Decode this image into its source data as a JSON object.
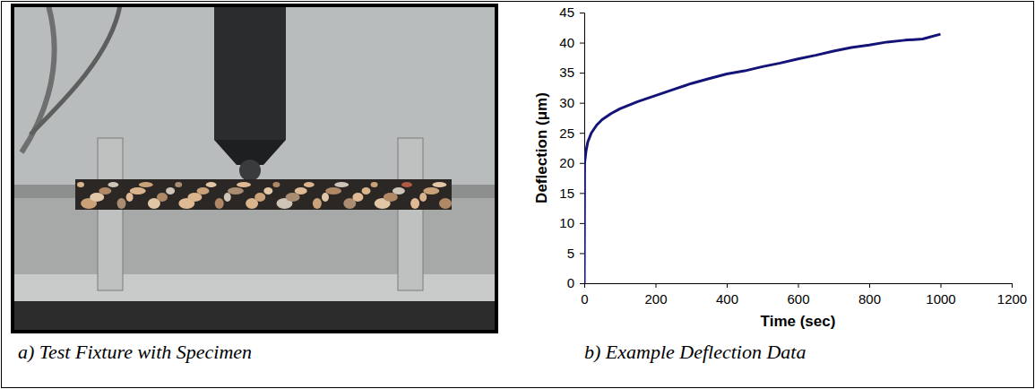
{
  "captions": [
    "a) Test Fixture with Specimen",
    "b) Example Deflection Data"
  ],
  "chart_data": {
    "type": "line",
    "x_label": "Time (sec)",
    "y_label": "Deflection (μm)",
    "x": [
      0,
      1,
      5,
      10,
      20,
      35,
      50,
      75,
      100,
      150,
      200,
      250,
      300,
      350,
      400,
      450,
      500,
      550,
      600,
      650,
      700,
      750,
      800,
      850,
      900,
      950,
      1000
    ],
    "values": [
      0,
      20,
      22,
      23.5,
      25,
      26.3,
      27.2,
      28.2,
      29,
      30.2,
      31.2,
      32.2,
      33.2,
      34,
      34.8,
      35.3,
      36,
      36.6,
      37.3,
      37.9,
      38.6,
      39.2,
      39.6,
      40.1,
      40.4,
      40.6,
      41.4
    ],
    "color": "#141478",
    "xlim": [
      0,
      1200
    ],
    "xticks": [
      0,
      200,
      400,
      600,
      800,
      1000,
      1200
    ],
    "ylim": [
      0,
      45
    ],
    "yticks": [
      0,
      5,
      10,
      15,
      20,
      25,
      30,
      35,
      40,
      45
    ],
    "grid": false
  }
}
